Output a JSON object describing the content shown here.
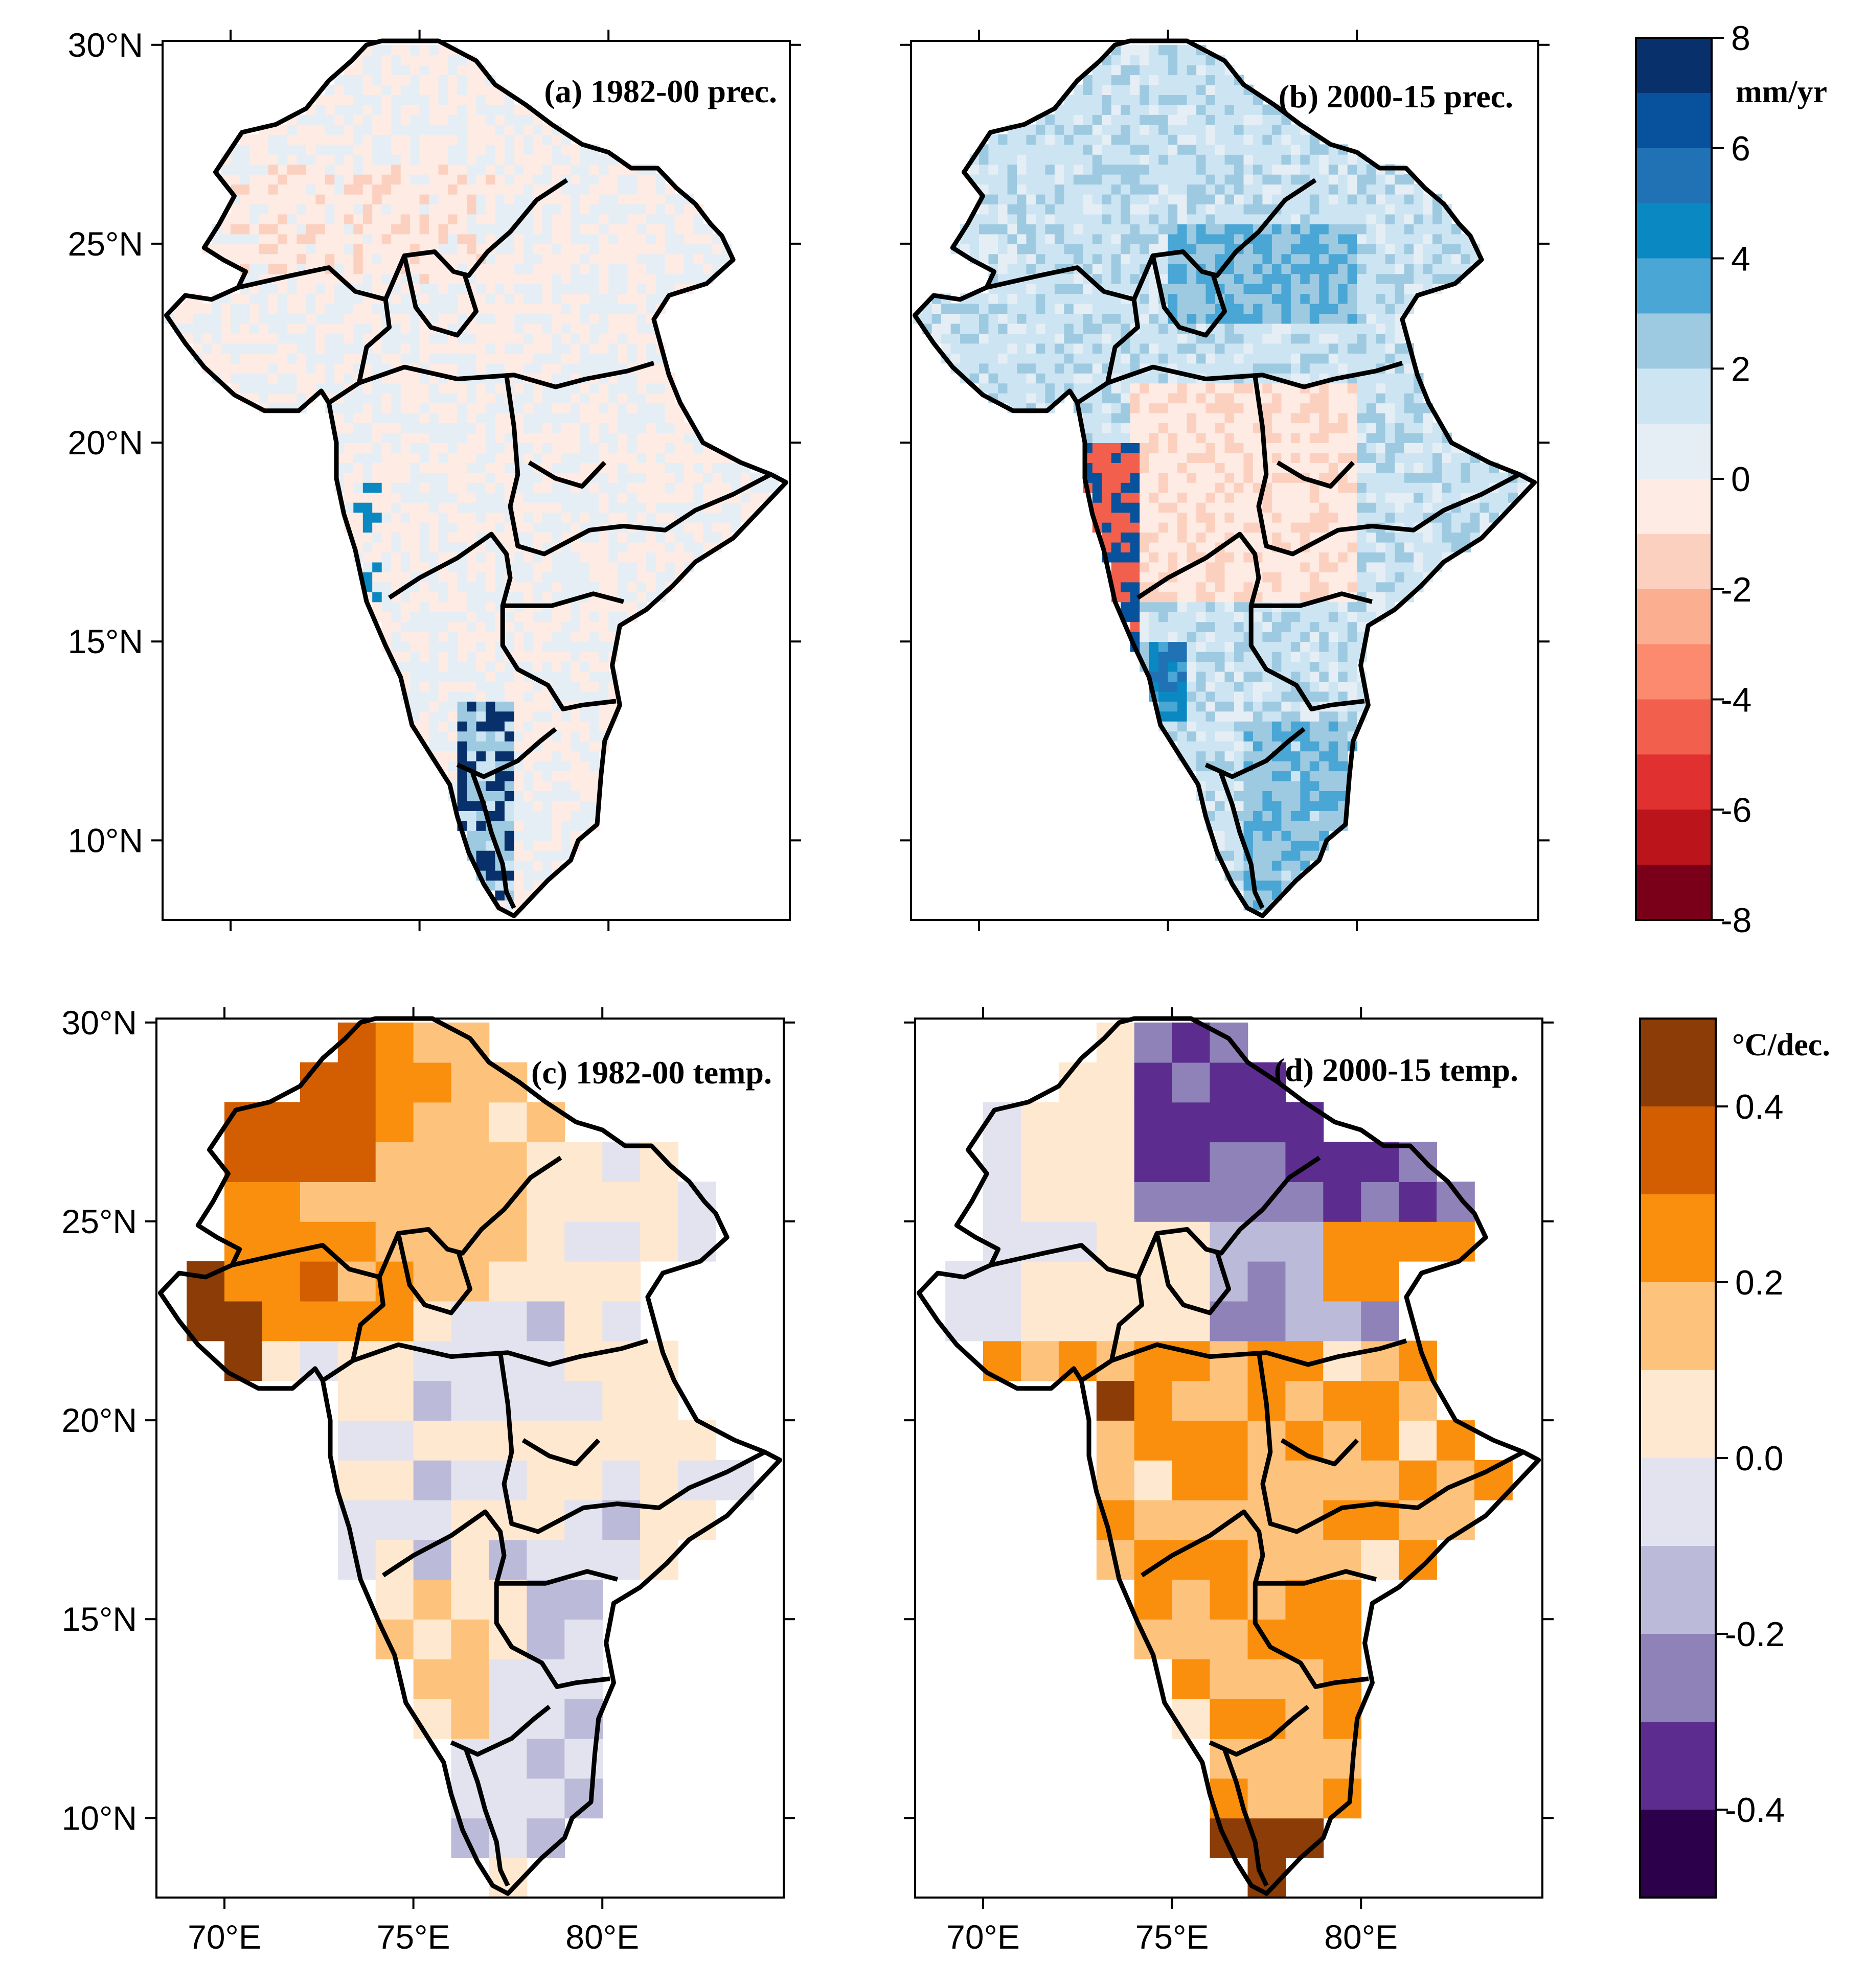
{
  "figure": {
    "lat_ticks": [
      "30°N",
      "25°N",
      "20°N",
      "15°N",
      "10°N"
    ],
    "lat_values": [
      30,
      25,
      20,
      15,
      10
    ],
    "lon_ticks": [
      "70°E",
      "75°E",
      "80°E"
    ],
    "lon_values": [
      70,
      75,
      80
    ],
    "lon_range": [
      68.2,
      84.8
    ],
    "lat_range": [
      8.0,
      30.1
    ]
  },
  "panels": [
    {
      "id": "a",
      "title": "(a) 1982-00 prec.",
      "variable": "precipitation trend",
      "period": "1982-2000",
      "pattern": "mixed-near-zero"
    },
    {
      "id": "b",
      "title": "(b) 2000-15 prec.",
      "variable": "precipitation trend",
      "period": "2000-2015",
      "pattern": "mostly-positive"
    },
    {
      "id": "c",
      "title": "(c) 1982-00 temp.",
      "variable": "temperature trend",
      "period": "1982-2000",
      "pattern": "warming-northwest"
    },
    {
      "id": "d",
      "title": "(d) 2000-15 temp.",
      "variable": "temperature trend",
      "period": "2000-2015",
      "pattern": "cooling-north-warming-south"
    }
  ],
  "colorbars": {
    "precipitation": {
      "unit": "mm/yr",
      "tick_labels": [
        "8",
        "6",
        "4",
        "2",
        "0",
        "-2",
        "-4",
        "-6",
        "-8"
      ],
      "tick_values": [
        8,
        6,
        4,
        2,
        0,
        -2,
        -4,
        -6,
        -8
      ],
      "range": [
        -8,
        8
      ],
      "colors_top_to_bottom": [
        "#08306b",
        "#08519c",
        "#2171b5",
        "#0a88c2",
        "#4aa6d4",
        "#9ecae1",
        "#cde5f2",
        "#e6eef5",
        "#fdebe4",
        "#fcd0bf",
        "#fcae91",
        "#fb8a6e",
        "#f2604d",
        "#e0302f",
        "#bb141b",
        "#7a0019"
      ]
    },
    "temperature": {
      "unit": "°C/dec.",
      "tick_labels": [
        "0.4",
        "0.2",
        "0.0",
        "-0.2",
        "-0.4"
      ],
      "tick_values": [
        0.4,
        0.2,
        0.0,
        -0.2,
        -0.4
      ],
      "range": [
        -0.5,
        0.5
      ],
      "colors_top_to_bottom": [
        "#8c3c06",
        "#d35e02",
        "#f98f0d",
        "#fdc37d",
        "#fee8cf",
        "#e3e3ef",
        "#bcbad9",
        "#8e82b8",
        "#5c2d8f",
        "#2d004b"
      ]
    }
  }
}
